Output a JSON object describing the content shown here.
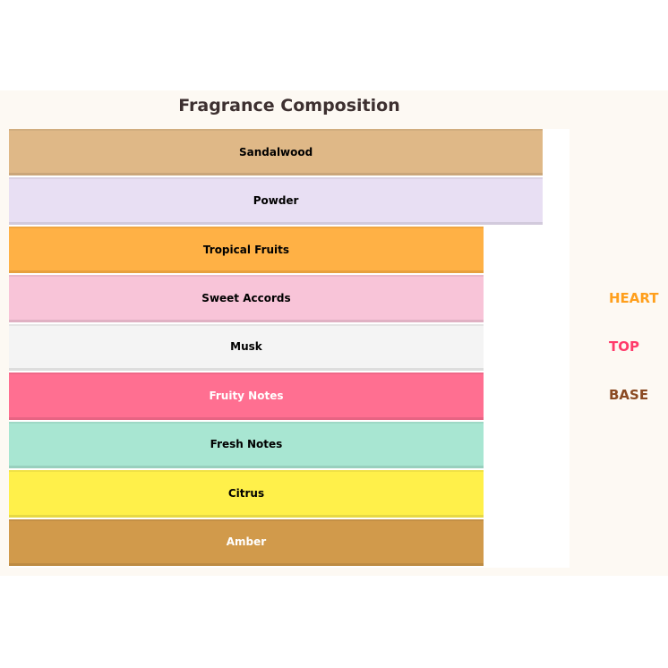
{
  "chart_data": {
    "type": "bar",
    "orientation": "horizontal",
    "title": "Fragrance Composition",
    "categories": [
      "Sandalwood",
      "Powder",
      "Tropical Fruits",
      "Sweet Accords",
      "Musk",
      "Fruity Notes",
      "Fresh Notes",
      "Citrus",
      "Amber"
    ],
    "values": [
      90,
      90,
      80,
      80,
      80,
      80,
      80,
      80,
      80
    ],
    "xlim": [
      0,
      94.5
    ],
    "colors": [
      "#dfb887",
      "#e8dff3",
      "#ffb145",
      "#f8c4d8",
      "#f4f4f4",
      "#ff6f91",
      "#a8e6d2",
      "#fff04a",
      "#d19a4b"
    ],
    "label_colors": [
      "#000000",
      "#000000",
      "#000000",
      "#000000",
      "#000000",
      "#ffffff",
      "#000000",
      "#000000",
      "#ffffff"
    ],
    "legend": [
      {
        "label": "HEART",
        "color": "#ff9f1c"
      },
      {
        "label": "TOP",
        "color": "#ff3b6b"
      },
      {
        "label": "BASE",
        "color": "#8b4a22"
      }
    ],
    "legend_placement": "right",
    "grid": false
  }
}
